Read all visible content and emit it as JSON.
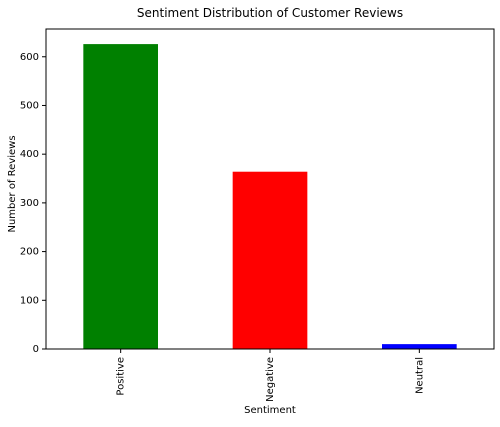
{
  "chart_data": {
    "type": "bar",
    "title": "Sentiment Distribution of Customer Reviews",
    "xlabel": "Sentiment",
    "ylabel": "Number of Reviews",
    "categories": [
      "Positive",
      "Negative",
      "Neutral"
    ],
    "values": [
      626,
      364,
      10
    ],
    "colors": [
      "#008000",
      "#ff0000",
      "#0000ff"
    ],
    "ylim": [
      0,
      657
    ],
    "yticks": [
      0,
      100,
      200,
      300,
      400,
      500,
      600
    ],
    "grid": false,
    "legend": "none"
  }
}
